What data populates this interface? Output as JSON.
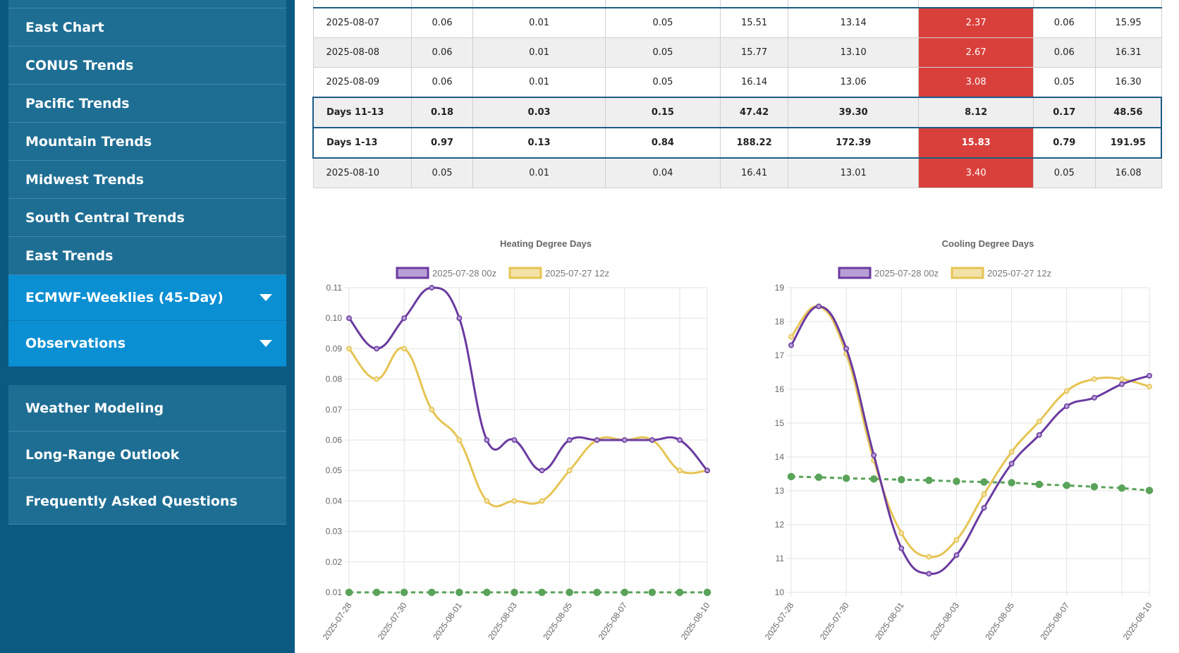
{
  "sidebar": {
    "items": [
      {
        "label": "East Chart"
      },
      {
        "label": "CONUS Trends"
      },
      {
        "label": "Pacific Trends"
      },
      {
        "label": "Mountain Trends"
      },
      {
        "label": "Midwest Trends"
      },
      {
        "label": "South Central Trends"
      },
      {
        "label": "East Trends"
      }
    ],
    "dropdowns": [
      {
        "label": "ECMWF-Weeklies (45-Day)"
      },
      {
        "label": "Observations"
      }
    ],
    "secondary": [
      {
        "label": "Weather Modeling"
      },
      {
        "label": "Long-Range Outlook"
      },
      {
        "label": "Frequently Asked Questions"
      }
    ]
  },
  "table": {
    "rows": [
      {
        "cells": [
          "2025-08-07",
          "0.06",
          "0.01",
          "0.05",
          "15.51",
          "13.14",
          "2.37",
          "0.06",
          "15.95"
        ],
        "red": true,
        "style": "normal"
      },
      {
        "cells": [
          "2025-08-08",
          "0.06",
          "0.01",
          "0.05",
          "15.77",
          "13.10",
          "2.67",
          "0.06",
          "16.31"
        ],
        "red": true,
        "style": "alt"
      },
      {
        "cells": [
          "2025-08-09",
          "0.06",
          "0.01",
          "0.05",
          "16.14",
          "13.06",
          "3.08",
          "0.05",
          "16.30"
        ],
        "red": true,
        "style": "normal"
      },
      {
        "cells": [
          "Days 11-13",
          "0.18",
          "0.03",
          "0.15",
          "47.42",
          "39.30",
          "8.12",
          "0.17",
          "48.56"
        ],
        "red": false,
        "style": "summary-alt"
      },
      {
        "cells": [
          "Days 1-13",
          "0.97",
          "0.13",
          "0.84",
          "188.22",
          "172.39",
          "15.83",
          "0.79",
          "191.95"
        ],
        "red": true,
        "style": "summary"
      },
      {
        "cells": [
          "2025-08-10",
          "0.05",
          "0.01",
          "0.04",
          "16.41",
          "13.01",
          "3.40",
          "0.05",
          "16.08"
        ],
        "red": true,
        "style": "alt"
      }
    ],
    "colors": {
      "red": "#d9403c",
      "border": "#1c5c85"
    }
  },
  "chart_data": [
    {
      "type": "line",
      "title": "Heating Degree Days",
      "x": [
        "2025-07-28",
        "2025-07-29",
        "2025-07-30",
        "2025-07-31",
        "2025-08-01",
        "2025-08-02",
        "2025-08-03",
        "2025-08-04",
        "2025-08-05",
        "2025-08-06",
        "2025-08-07",
        "2025-08-08",
        "2025-08-09",
        "2025-08-10"
      ],
      "xticks": [
        "2025-07-28",
        "2025-07-30",
        "2025-08-01",
        "2025-08-03",
        "2025-08-05",
        "2025-08-07",
        "2025-08-10"
      ],
      "ylim": [
        0.01,
        0.11
      ],
      "yticks": [
        "0.11",
        "0.10",
        "0.09",
        "0.08",
        "0.07",
        "0.06",
        "0.05",
        "0.04",
        "0.03",
        "0.02",
        "0.01"
      ],
      "series": [
        {
          "name": "2025-07-28 00z",
          "color": "#6a3aa0",
          "fill": "#b79fd6",
          "dashed": false,
          "values": [
            0.1,
            0.09,
            0.1,
            0.11,
            0.1,
            0.06,
            0.06,
            0.05,
            0.06,
            0.06,
            0.06,
            0.06,
            0.06,
            0.05
          ]
        },
        {
          "name": "2025-07-27 12z",
          "color": "#e6c454",
          "fill": "#f3e2a8",
          "dashed": false,
          "values": [
            0.09,
            0.08,
            0.09,
            0.07,
            0.06,
            0.04,
            0.04,
            0.04,
            0.05,
            0.06,
            0.06,
            0.06,
            0.05,
            0.05
          ]
        },
        {
          "name": "",
          "color": "#5aa35a",
          "dashed": true,
          "legend": false,
          "values": [
            0.01,
            0.01,
            0.01,
            0.01,
            0.01,
            0.01,
            0.01,
            0.01,
            0.01,
            0.01,
            0.01,
            0.01,
            0.01,
            0.01
          ]
        }
      ],
      "grid": true,
      "legend": "top"
    },
    {
      "type": "line",
      "title": "Cooling Degree Days",
      "x": [
        "2025-07-28",
        "2025-07-29",
        "2025-07-30",
        "2025-07-31",
        "2025-08-01",
        "2025-08-02",
        "2025-08-03",
        "2025-08-04",
        "2025-08-05",
        "2025-08-06",
        "2025-08-07",
        "2025-08-08",
        "2025-08-09",
        "2025-08-10"
      ],
      "xticks": [
        "2025-07-28",
        "2025-07-30",
        "2025-08-01",
        "2025-08-03",
        "2025-08-05",
        "2025-08-07",
        "2025-08-10"
      ],
      "ylim": [
        10,
        19
      ],
      "yticks": [
        "19",
        "18",
        "17",
        "16",
        "15",
        "14",
        "13",
        "12",
        "11",
        "10"
      ],
      "series": [
        {
          "name": "2025-07-28 00z",
          "color": "#6a3aa0",
          "fill": "#b79fd6",
          "dashed": false,
          "values": [
            17.3,
            18.45,
            17.2,
            14.05,
            11.3,
            10.55,
            11.1,
            12.5,
            13.8,
            14.65,
            15.5,
            15.75,
            16.15,
            16.4
          ]
        },
        {
          "name": "2025-07-27 12z",
          "color": "#e6c454",
          "fill": "#f3e2a8",
          "dashed": false,
          "values": [
            17.55,
            18.45,
            17.05,
            13.9,
            11.75,
            11.05,
            11.55,
            12.9,
            14.15,
            15.05,
            15.95,
            16.3,
            16.3,
            16.08
          ]
        },
        {
          "name": "",
          "color": "#5aa35a",
          "dashed": true,
          "legend": false,
          "values": [
            13.42,
            13.4,
            13.37,
            13.35,
            13.33,
            13.31,
            13.28,
            13.26,
            13.24,
            13.19,
            13.16,
            13.12,
            13.08,
            13.01
          ]
        }
      ],
      "grid": true,
      "legend": "top"
    }
  ]
}
